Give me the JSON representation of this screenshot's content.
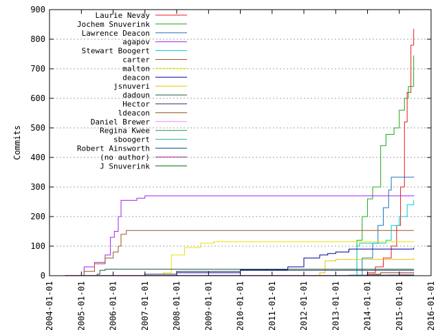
{
  "chart_data": {
    "type": "line",
    "title": "",
    "xlabel": "",
    "ylabel": "Commits",
    "x_is_date": true,
    "xlim": [
      "2004-01-01",
      "2016-01-01"
    ],
    "ylim": [
      0,
      900
    ],
    "x_ticks": [
      "2004-01-01",
      "2005-01-01",
      "2006-01-01",
      "2007-01-01",
      "2008-01-01",
      "2009-01-01",
      "2010-01-01",
      "2011-01-01",
      "2012-01-01",
      "2013-01-01",
      "2014-01-01",
      "2015-01-01",
      "2016-01-01"
    ],
    "y_ticks": [
      0,
      100,
      200,
      300,
      400,
      500,
      600,
      700,
      800,
      900
    ],
    "grid": true,
    "legend_position": "top-left",
    "series": [
      {
        "name": "Laurie Nevay",
        "color": "#e41a1c",
        "points": [
          [
            "2013-10-01",
            0
          ],
          [
            "2014-01-01",
            10
          ],
          [
            "2014-04-01",
            30
          ],
          [
            "2014-07-01",
            60
          ],
          [
            "2014-10-01",
            100
          ],
          [
            "2014-12-01",
            170
          ],
          [
            "2015-01-15",
            300
          ],
          [
            "2015-03-01",
            520
          ],
          [
            "2015-04-01",
            620
          ],
          [
            "2015-05-15",
            780
          ],
          [
            "2015-06-15",
            835
          ]
        ]
      },
      {
        "name": "Jochem Snuverink",
        "color": "#1aa51a",
        "points": [
          [
            "2013-06-01",
            0
          ],
          [
            "2013-09-01",
            120
          ],
          [
            "2013-11-01",
            200
          ],
          [
            "2014-01-01",
            260
          ],
          [
            "2014-03-01",
            300
          ],
          [
            "2014-06-01",
            440
          ],
          [
            "2014-08-01",
            478
          ],
          [
            "2014-11-01",
            500
          ],
          [
            "2015-01-01",
            560
          ],
          [
            "2015-03-01",
            600
          ],
          [
            "2015-04-15",
            640
          ],
          [
            "2015-06-15",
            745
          ]
        ]
      },
      {
        "name": "Lawrence Deacon",
        "color": "#1a75b8",
        "points": [
          [
            "2013-08-01",
            0
          ],
          [
            "2013-11-01",
            60
          ],
          [
            "2014-03-01",
            110
          ],
          [
            "2014-05-01",
            170
          ],
          [
            "2014-07-01",
            230
          ],
          [
            "2014-09-01",
            290
          ],
          [
            "2014-10-01",
            333
          ],
          [
            "2015-06-15",
            335
          ]
        ]
      },
      {
        "name": "agapov",
        "color": "#a020f0",
        "points": [
          [
            "2004-01-01",
            0
          ],
          [
            "2005-01-01",
            0
          ],
          [
            "2005-02-01",
            30
          ],
          [
            "2005-06-01",
            45
          ],
          [
            "2005-10-01",
            70
          ],
          [
            "2005-12-01",
            130
          ],
          [
            "2006-01-15",
            150
          ],
          [
            "2006-03-01",
            200
          ],
          [
            "2006-04-01",
            255
          ],
          [
            "2006-10-01",
            262
          ],
          [
            "2007-01-01",
            270
          ],
          [
            "2015-06-15",
            272
          ]
        ]
      },
      {
        "name": "Stewart Boogert",
        "color": "#00cccc",
        "points": [
          [
            "2013-06-01",
            0
          ],
          [
            "2013-09-01",
            100
          ],
          [
            "2013-10-01",
            110
          ],
          [
            "2014-08-01",
            120
          ],
          [
            "2014-10-01",
            170
          ],
          [
            "2015-01-01",
            200
          ],
          [
            "2015-04-01",
            240
          ],
          [
            "2015-06-15",
            255
          ]
        ]
      },
      {
        "name": "carter",
        "color": "#a0522d",
        "points": [
          [
            "2004-01-01",
            0
          ],
          [
            "2005-01-01",
            0
          ],
          [
            "2005-02-01",
            15
          ],
          [
            "2005-06-01",
            40
          ],
          [
            "2005-10-01",
            60
          ],
          [
            "2006-01-01",
            80
          ],
          [
            "2006-03-01",
            100
          ],
          [
            "2006-04-01",
            140
          ],
          [
            "2006-06-01",
            153
          ],
          [
            "2015-06-15",
            153
          ]
        ]
      },
      {
        "name": "malton",
        "color": "#e6e600",
        "points": [
          [
            "2007-06-01",
            0
          ],
          [
            "2007-08-01",
            10
          ],
          [
            "2007-11-01",
            70
          ],
          [
            "2008-04-01",
            95
          ],
          [
            "2008-10-01",
            110
          ],
          [
            "2009-03-01",
            115
          ],
          [
            "2015-06-15",
            116
          ]
        ]
      },
      {
        "name": "deacon",
        "color": "#000099",
        "points": [
          [
            "2006-01-01",
            0
          ],
          [
            "2008-01-01",
            10
          ],
          [
            "2010-01-01",
            20
          ],
          [
            "2011-07-01",
            30
          ],
          [
            "2012-01-01",
            60
          ],
          [
            "2012-07-01",
            70
          ],
          [
            "2012-10-01",
            75
          ],
          [
            "2013-01-01",
            80
          ],
          [
            "2013-06-01",
            90
          ],
          [
            "2015-06-15",
            95
          ]
        ]
      },
      {
        "name": "jsnuveri",
        "color": "#e6c200",
        "points": [
          [
            "2012-01-01",
            0
          ],
          [
            "2012-07-01",
            10
          ],
          [
            "2012-09-01",
            50
          ],
          [
            "2013-01-01",
            55
          ],
          [
            "2015-06-15",
            60
          ]
        ]
      },
      {
        "name": "dadoun",
        "color": "#1f5f3f",
        "points": [
          [
            "2005-06-01",
            0
          ],
          [
            "2005-07-01",
            5
          ],
          [
            "2005-08-01",
            18
          ],
          [
            "2005-10-01",
            22
          ],
          [
            "2015-06-15",
            22
          ]
        ]
      },
      {
        "name": "Hector",
        "color": "#203060",
        "points": [
          [
            "2006-06-01",
            0
          ],
          [
            "2007-01-01",
            5
          ],
          [
            "2008-01-01",
            15
          ],
          [
            "2010-01-01",
            18
          ],
          [
            "2015-06-15",
            20
          ]
        ]
      },
      {
        "name": "ldeacon",
        "color": "#8b4513",
        "points": [
          [
            "2013-10-01",
            0
          ],
          [
            "2014-01-01",
            5
          ],
          [
            "2014-06-01",
            10
          ],
          [
            "2015-06-15",
            12
          ]
        ]
      },
      {
        "name": "Daniel Brewer",
        "color": "#ff80ff",
        "points": [
          [
            "2014-06-01",
            0
          ],
          [
            "2014-09-01",
            3
          ],
          [
            "2015-01-01",
            5
          ],
          [
            "2015-06-15",
            7
          ]
        ]
      },
      {
        "name": "Regina Kwee",
        "color": "#2e8b57",
        "points": [
          [
            "2014-01-01",
            0
          ],
          [
            "2014-03-01",
            2
          ],
          [
            "2015-06-15",
            4
          ]
        ]
      },
      {
        "name": "sboogert",
        "color": "#20b2aa",
        "points": [
          [
            "2013-01-01",
            0
          ],
          [
            "2013-06-01",
            2
          ],
          [
            "2015-06-15",
            3
          ]
        ]
      },
      {
        "name": "Robert Ainsworth",
        "color": "#104e8b",
        "points": [
          [
            "2014-06-01",
            0
          ],
          [
            "2015-01-01",
            1
          ],
          [
            "2015-06-15",
            2
          ]
        ]
      },
      {
        "name": "(no author)",
        "color": "#a020a0",
        "points": [
          [
            "2004-06-01",
            0
          ],
          [
            "2004-07-01",
            1
          ],
          [
            "2015-06-15",
            1
          ]
        ]
      },
      {
        "name": "J Snuverink",
        "color": "#006400",
        "points": [
          [
            "2015-01-01",
            0
          ],
          [
            "2015-03-01",
            1
          ],
          [
            "2015-06-15",
            1
          ]
        ]
      }
    ]
  }
}
